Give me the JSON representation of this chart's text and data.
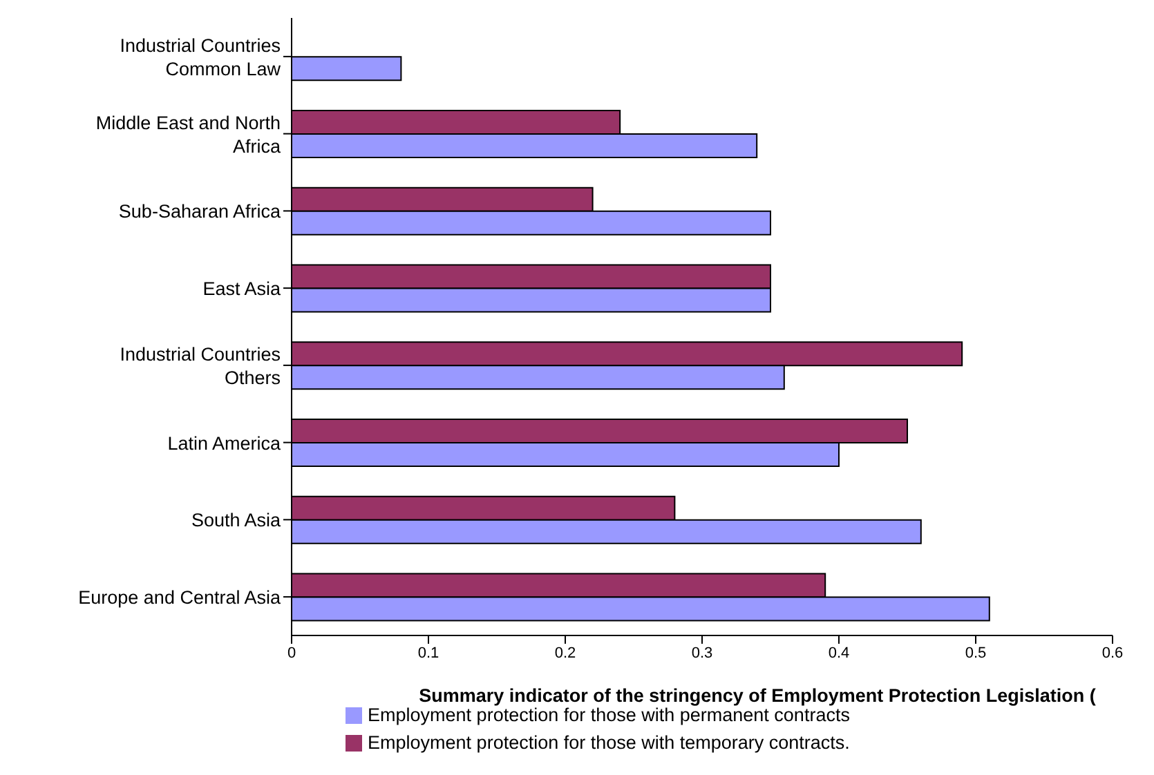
{
  "chart_data": {
    "type": "bar",
    "orientation": "horizontal",
    "xlabel": "Summary indicator of the stringency of Employment Protection Legislation (",
    "categories": [
      "Industrial Countries Common Law",
      "Middle East and North Africa",
      "Sub-Saharan Africa",
      "East Asia",
      "Industrial Countries Others",
      "Latin America",
      "South Asia",
      "Europe and Central Asia"
    ],
    "series": [
      {
        "name": "Employment protection for those with temporary contracts.",
        "color": "#993366",
        "values": [
          null,
          0.24,
          0.22,
          0.35,
          0.49,
          0.45,
          0.28,
          0.39
        ]
      },
      {
        "name": "Employment protection for those with permanent contracts",
        "color": "#9999ff",
        "values": [
          0.08,
          0.34,
          0.35,
          0.35,
          0.36,
          0.4,
          0.46,
          0.51
        ]
      }
    ],
    "xlim": [
      0,
      0.6
    ],
    "xticks": [
      0,
      0.1,
      0.2,
      0.3,
      0.4,
      0.5,
      0.6
    ],
    "grid": false,
    "legend": "bottom"
  }
}
